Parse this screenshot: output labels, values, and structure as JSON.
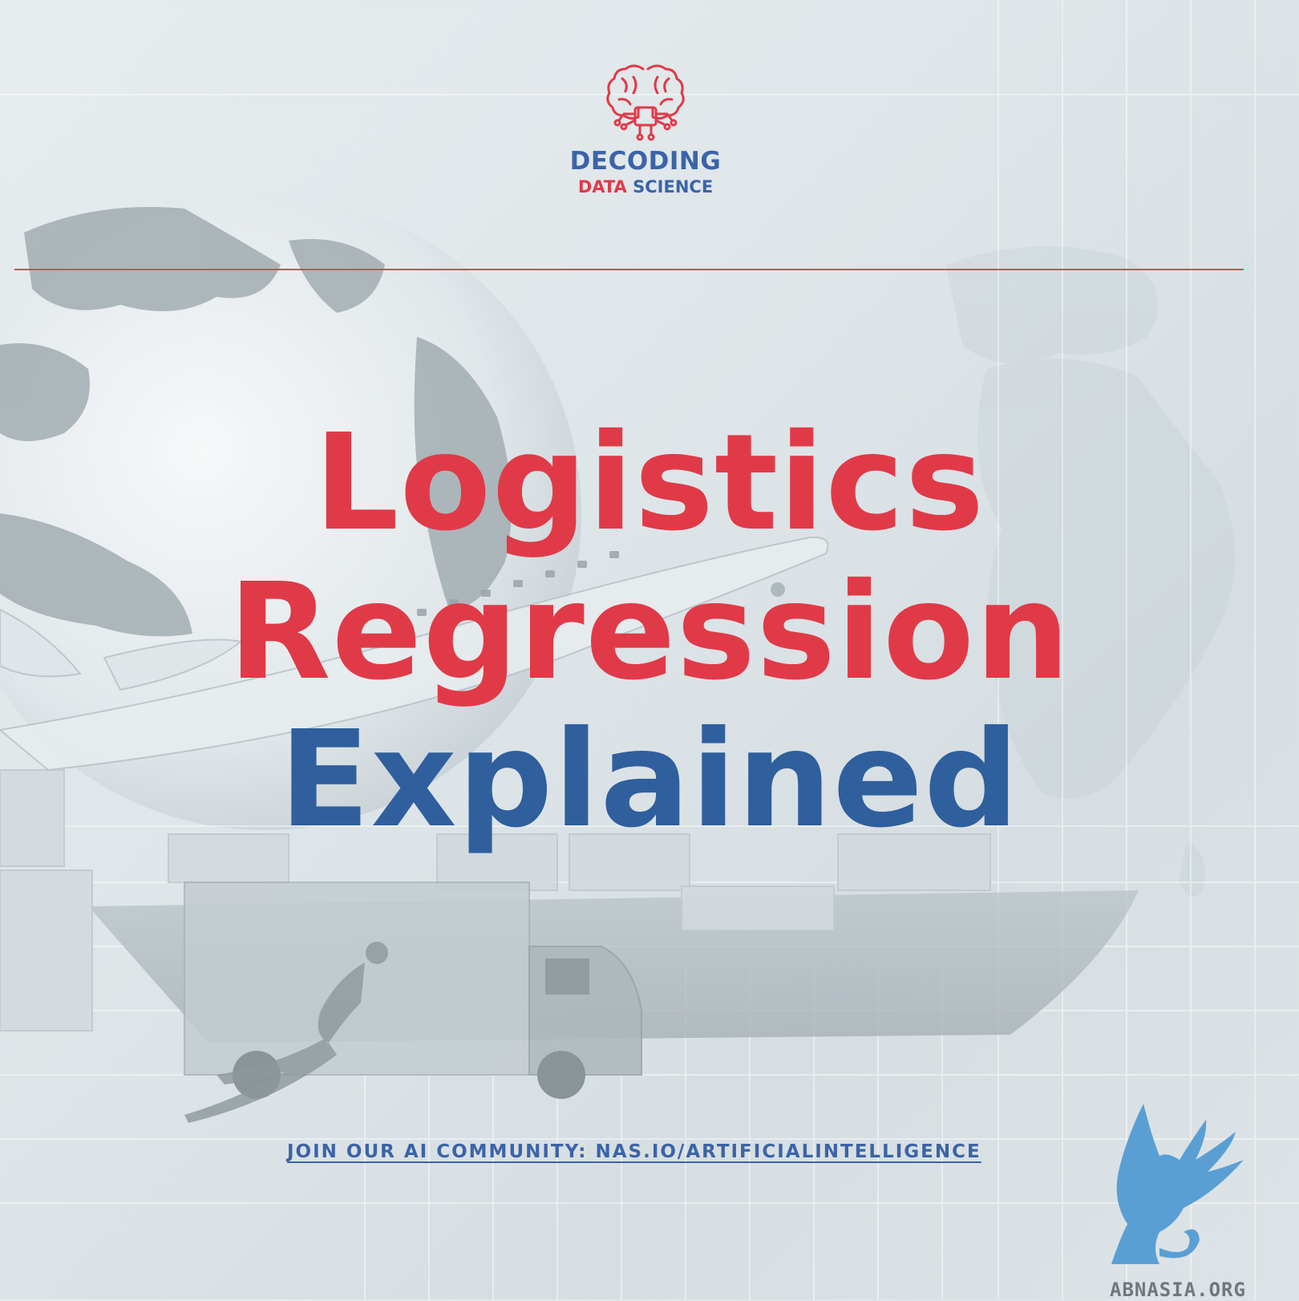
{
  "logo": {
    "icon_label": "AI",
    "line1": "DECODING",
    "line2_red": "DATA",
    "line2_blue": "SCIENCE"
  },
  "title": {
    "line1": "Logistics",
    "line2": "Regression",
    "line3": "Explained"
  },
  "footer": {
    "join_text": "JOIN OUR AI COMMUNITY: NAS.IO/ARTIFICIALINTELLIGENCE",
    "watermark": "ABNASIA.ORG"
  },
  "colors": {
    "accent_red": "#e03a48",
    "accent_blue": "#2f5f9d",
    "divider": "#e64650",
    "griffin": "#5a9fd4"
  },
  "icons": [
    "brain-circuit-icon",
    "griffin-icon"
  ]
}
